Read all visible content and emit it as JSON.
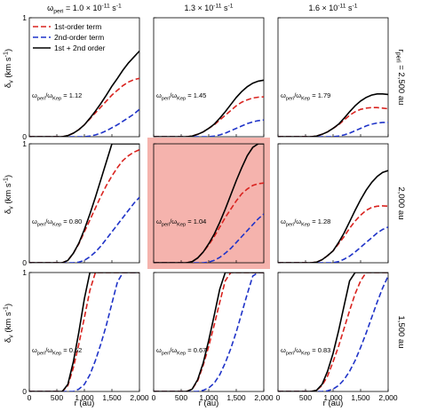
{
  "chart_data": {
    "type": "line",
    "column_titles": [
      "ω_peri = 1.0 × 10^-11 s^-1",
      "1.3 × 10^-11 s^-1",
      "1.6 × 10^-11 s^-1"
    ],
    "row_labels": [
      "r_peri = 2,500 au",
      "2,000 au",
      "1,500 au"
    ],
    "xlabel": "r (au)",
    "ylabel": "δ_v (km s^-1)",
    "xlim": [
      0,
      2000
    ],
    "ylim": [
      0,
      1
    ],
    "x_ticks": [
      "0",
      "500",
      "1,000",
      "1,500",
      "2,000"
    ],
    "y_ticks": [
      "0",
      "1"
    ],
    "legend": [
      "1st-order term",
      "2nd-order term",
      "1st + 2nd order"
    ],
    "legend_position": "top-left panel, upper-left",
    "series_colors": {
      "first": "#d9231f",
      "second": "#1f33c8",
      "total": "#000000"
    },
    "highlight_panel": {
      "row": 1,
      "col": 1,
      "color": "#f5b3ad"
    },
    "x": [
      0,
      100,
      200,
      300,
      400,
      500,
      600,
      700,
      800,
      900,
      1000,
      1100,
      1200,
      1300,
      1400,
      1500,
      1600,
      1700,
      1800,
      1900,
      2000
    ],
    "panels": [
      {
        "row": 0,
        "col": 0,
        "ratio_label": "ω_peri/ω_Kep = 1.12",
        "series": [
          {
            "name": "1st-order term",
            "values": [
              0,
              0,
              0,
              0,
              0,
              0,
              0,
              0.01,
              0.03,
              0.06,
              0.1,
              0.15,
              0.2,
              0.25,
              0.3,
              0.35,
              0.39,
              0.43,
              0.46,
              0.48,
              0.49
            ]
          },
          {
            "name": "2nd-order term",
            "values": [
              0,
              0,
              0,
              0,
              0,
              0,
              0,
              0,
              0,
              0,
              0,
              0.005,
              0.015,
              0.03,
              0.05,
              0.075,
              0.1,
              0.13,
              0.16,
              0.19,
              0.23
            ]
          },
          {
            "name": "1st + 2nd order",
            "values": [
              0,
              0,
              0,
              0,
              0,
              0,
              0,
              0.01,
              0.03,
              0.06,
              0.1,
              0.155,
              0.215,
              0.28,
              0.35,
              0.425,
              0.49,
              0.56,
              0.62,
              0.67,
              0.72
            ]
          }
        ]
      },
      {
        "row": 0,
        "col": 1,
        "ratio_label": "ω_peri/ω_Kep = 1.45",
        "series": [
          {
            "name": "1st-order term",
            "values": [
              0,
              0,
              0,
              0,
              0,
              0,
              0,
              0.005,
              0.02,
              0.04,
              0.07,
              0.1,
              0.14,
              0.18,
              0.22,
              0.26,
              0.29,
              0.31,
              0.325,
              0.332,
              0.335
            ]
          },
          {
            "name": "2nd-order term",
            "values": [
              0,
              0,
              0,
              0,
              0,
              0,
              0,
              0,
              0,
              0,
              0,
              0.005,
              0.015,
              0.03,
              0.05,
              0.07,
              0.09,
              0.11,
              0.125,
              0.135,
              0.14
            ]
          },
          {
            "name": "1st + 2nd order",
            "values": [
              0,
              0,
              0,
              0,
              0,
              0,
              0,
              0.005,
              0.02,
              0.04,
              0.07,
              0.105,
              0.155,
              0.21,
              0.27,
              0.33,
              0.38,
              0.42,
              0.45,
              0.467,
              0.475
            ]
          }
        ]
      },
      {
        "row": 0,
        "col": 2,
        "ratio_label": "ω_peri/ω_Kep = 1.79",
        "series": [
          {
            "name": "1st-order term",
            "values": [
              0,
              0,
              0,
              0,
              0,
              0,
              0,
              0.005,
              0.02,
              0.04,
              0.07,
              0.1,
              0.14,
              0.18,
              0.21,
              0.23,
              0.24,
              0.245,
              0.245,
              0.24,
              0.235
            ]
          },
          {
            "name": "2nd-order term",
            "values": [
              0,
              0,
              0,
              0,
              0,
              0,
              0,
              0,
              0,
              0,
              0,
              0.005,
              0.015,
              0.03,
              0.05,
              0.07,
              0.09,
              0.105,
              0.115,
              0.12,
              0.12
            ]
          },
          {
            "name": "1st + 2nd order",
            "values": [
              0,
              0,
              0,
              0,
              0,
              0,
              0,
              0.005,
              0.02,
              0.04,
              0.07,
              0.105,
              0.155,
              0.21,
              0.26,
              0.3,
              0.33,
              0.35,
              0.36,
              0.36,
              0.355
            ]
          }
        ]
      },
      {
        "row": 1,
        "col": 0,
        "ratio_label": "ω_peri/ω_Kep = 0.80",
        "series": [
          {
            "name": "1st-order term",
            "values": [
              0,
              0,
              0,
              0,
              0,
              0,
              0,
              0.02,
              0.08,
              0.16,
              0.26,
              0.36,
              0.46,
              0.56,
              0.65,
              0.73,
              0.8,
              0.86,
              0.9,
              0.93,
              0.95
            ]
          },
          {
            "name": "2nd-order term",
            "values": [
              0,
              0,
              0,
              0,
              0,
              0,
              0,
              0,
              0,
              0.005,
              0.02,
              0.05,
              0.09,
              0.14,
              0.2,
              0.26,
              0.32,
              0.38,
              0.44,
              0.5,
              0.55
            ]
          },
          {
            "name": "1st + 2nd order",
            "values": [
              0,
              0,
              0,
              0,
              0,
              0,
              0,
              0.02,
              0.08,
              0.165,
              0.28,
              0.41,
              0.55,
              0.7,
              0.85,
              1.0,
              1.0,
              1.0,
              1.0,
              1.0,
              1.0
            ]
          }
        ]
      },
      {
        "row": 1,
        "col": 1,
        "ratio_label": "ω_peri/ω_Kep = 1.04",
        "series": [
          {
            "name": "1st-order term",
            "values": [
              0,
              0,
              0,
              0,
              0,
              0,
              0,
              0.01,
              0.04,
              0.09,
              0.15,
              0.22,
              0.3,
              0.38,
              0.45,
              0.52,
              0.58,
              0.62,
              0.65,
              0.665,
              0.67
            ]
          },
          {
            "name": "2nd-order term",
            "values": [
              0,
              0,
              0,
              0,
              0,
              0,
              0,
              0,
              0,
              0,
              0.005,
              0.02,
              0.045,
              0.08,
              0.12,
              0.17,
              0.22,
              0.27,
              0.32,
              0.37,
              0.41
            ]
          },
          {
            "name": "1st + 2nd order",
            "values": [
              0,
              0,
              0,
              0,
              0,
              0,
              0,
              0.01,
              0.04,
              0.09,
              0.16,
              0.24,
              0.34,
              0.45,
              0.57,
              0.69,
              0.8,
              0.9,
              0.97,
              1.0,
              1.0
            ]
          }
        ]
      },
      {
        "row": 1,
        "col": 2,
        "ratio_label": "ω_peri/ω_Kep = 1.28",
        "series": [
          {
            "name": "1st-order term",
            "values": [
              0,
              0,
              0,
              0,
              0,
              0,
              0,
              0.005,
              0.025,
              0.06,
              0.1,
              0.16,
              0.22,
              0.29,
              0.35,
              0.4,
              0.44,
              0.465,
              0.475,
              0.478,
              0.475
            ]
          },
          {
            "name": "2nd-order term",
            "values": [
              0,
              0,
              0,
              0,
              0,
              0,
              0,
              0,
              0,
              0,
              0,
              0.01,
              0.03,
              0.055,
              0.09,
              0.13,
              0.17,
              0.21,
              0.25,
              0.28,
              0.3
            ]
          },
          {
            "name": "1st + 2nd order",
            "values": [
              0,
              0,
              0,
              0,
              0,
              0,
              0,
              0.005,
              0.025,
              0.06,
              0.1,
              0.17,
              0.25,
              0.345,
              0.44,
              0.53,
              0.61,
              0.675,
              0.725,
              0.76,
              0.775
            ]
          }
        ]
      },
      {
        "row": 2,
        "col": 0,
        "ratio_label": "ω_peri/ω_Kep = 0.52",
        "series": [
          {
            "name": "1st-order term",
            "values": [
              0,
              0,
              0,
              0,
              0,
              0,
              0,
              0.05,
              0.2,
              0.4,
              0.62,
              0.85,
              1.0,
              1.0,
              1.0,
              1.0,
              1.0,
              1.0,
              1.0,
              1.0,
              1.0
            ]
          },
          {
            "name": "2nd-order term",
            "values": [
              0,
              0,
              0,
              0,
              0,
              0,
              0,
              0,
              0,
              0.02,
              0.06,
              0.14,
              0.26,
              0.4,
              0.56,
              0.74,
              0.92,
              1.0,
              1.0,
              1.0,
              1.0
            ]
          },
          {
            "name": "1st + 2nd order",
            "values": [
              0,
              0,
              0,
              0,
              0,
              0,
              0,
              0.06,
              0.25,
              0.5,
              0.78,
              1.0,
              1.0,
              1.0,
              1.0,
              1.0,
              1.0,
              1.0,
              1.0,
              1.0,
              1.0
            ]
          }
        ]
      },
      {
        "row": 2,
        "col": 1,
        "ratio_label": "ω_peri/ω_Kep = 0.67",
        "series": [
          {
            "name": "1st-order term",
            "values": [
              0,
              0,
              0,
              0,
              0,
              0,
              0,
              0.02,
              0.09,
              0.22,
              0.38,
              0.56,
              0.75,
              0.93,
              1.0,
              1.0,
              1.0,
              1.0,
              1.0,
              1.0,
              1.0
            ]
          },
          {
            "name": "2nd-order term",
            "values": [
              0,
              0,
              0,
              0,
              0,
              0,
              0,
              0,
              0,
              0.01,
              0.03,
              0.07,
              0.14,
              0.24,
              0.36,
              0.5,
              0.66,
              0.82,
              0.97,
              1.0,
              1.0
            ]
          },
          {
            "name": "1st + 2nd order",
            "values": [
              0,
              0,
              0,
              0,
              0,
              0,
              0,
              0.02,
              0.1,
              0.24,
              0.43,
              0.64,
              0.86,
              1.0,
              1.0,
              1.0,
              1.0,
              1.0,
              1.0,
              1.0,
              1.0
            ]
          }
        ]
      },
      {
        "row": 2,
        "col": 2,
        "ratio_label": "ω_peri/ω_Kep = 0.83",
        "series": [
          {
            "name": "1st-order term",
            "values": [
              0,
              0,
              0,
              0,
              0,
              0,
              0,
              0.01,
              0.05,
              0.13,
              0.25,
              0.38,
              0.53,
              0.68,
              0.82,
              0.93,
              1.0,
              1.0,
              1.0,
              1.0,
              1.0
            ]
          },
          {
            "name": "2nd-order term",
            "values": [
              0,
              0,
              0,
              0,
              0,
              0,
              0,
              0,
              0,
              0.005,
              0.02,
              0.05,
              0.1,
              0.17,
              0.26,
              0.37,
              0.49,
              0.62,
              0.75,
              0.87,
              0.97
            ]
          },
          {
            "name": "1st + 2nd order",
            "values": [
              0,
              0,
              0,
              0,
              0,
              0,
              0,
              0.01,
              0.06,
              0.17,
              0.32,
              0.51,
              0.72,
              0.93,
              1.0,
              1.0,
              1.0,
              1.0,
              1.0,
              1.0,
              1.0
            ]
          }
        ]
      }
    ]
  }
}
